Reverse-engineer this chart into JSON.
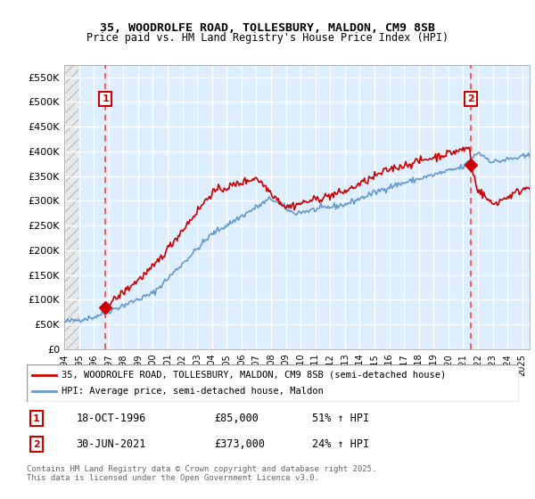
{
  "title": "35, WOODROLFE ROAD, TOLLESBURY, MALDON, CM9 8SB",
  "subtitle": "Price paid vs. HM Land Registry's House Price Index (HPI)",
  "legend_line1": "35, WOODROLFE ROAD, TOLLESBURY, MALDON, CM9 8SB (semi-detached house)",
  "legend_line2": "HPI: Average price, semi-detached house, Maldon",
  "footer": "Contains HM Land Registry data © Crown copyright and database right 2025.\nThis data is licensed under the Open Government Licence v3.0.",
  "purchase1_label": "1",
  "purchase1_date": "18-OCT-1996",
  "purchase1_price": 85000,
  "purchase1_hpi_pct": "51% ↑ HPI",
  "purchase2_label": "2",
  "purchase2_date": "30-JUN-2021",
  "purchase2_price": 373000,
  "purchase2_hpi_pct": "24% ↑ HPI",
  "purchase1_date_num": 1996.79,
  "purchase2_date_num": 2021.5,
  "ylim": [
    0,
    575000
  ],
  "yticks": [
    0,
    50000,
    100000,
    150000,
    200000,
    250000,
    300000,
    350000,
    400000,
    450000,
    500000,
    550000
  ],
  "ytick_labels": [
    "£0",
    "£50K",
    "£100K",
    "£150K",
    "£200K",
    "£250K",
    "£300K",
    "£350K",
    "£400K",
    "£450K",
    "£500K",
    "£550K"
  ],
  "xlim_start": 1994.0,
  "xlim_end": 2025.5,
  "xticks": [
    1994,
    1995,
    1996,
    1997,
    1998,
    1999,
    2000,
    2001,
    2002,
    2003,
    2004,
    2005,
    2006,
    2007,
    2008,
    2009,
    2010,
    2011,
    2012,
    2013,
    2014,
    2015,
    2016,
    2017,
    2018,
    2019,
    2020,
    2021,
    2022,
    2023,
    2024,
    2025
  ],
  "red_color": "#cc0000",
  "blue_color": "#6699cc",
  "bg_color": "#ddeeff",
  "hatch_color": "#cccccc",
  "grid_color": "#ffffff",
  "marker_color": "#cc0000",
  "vline_color": "#ff4444"
}
